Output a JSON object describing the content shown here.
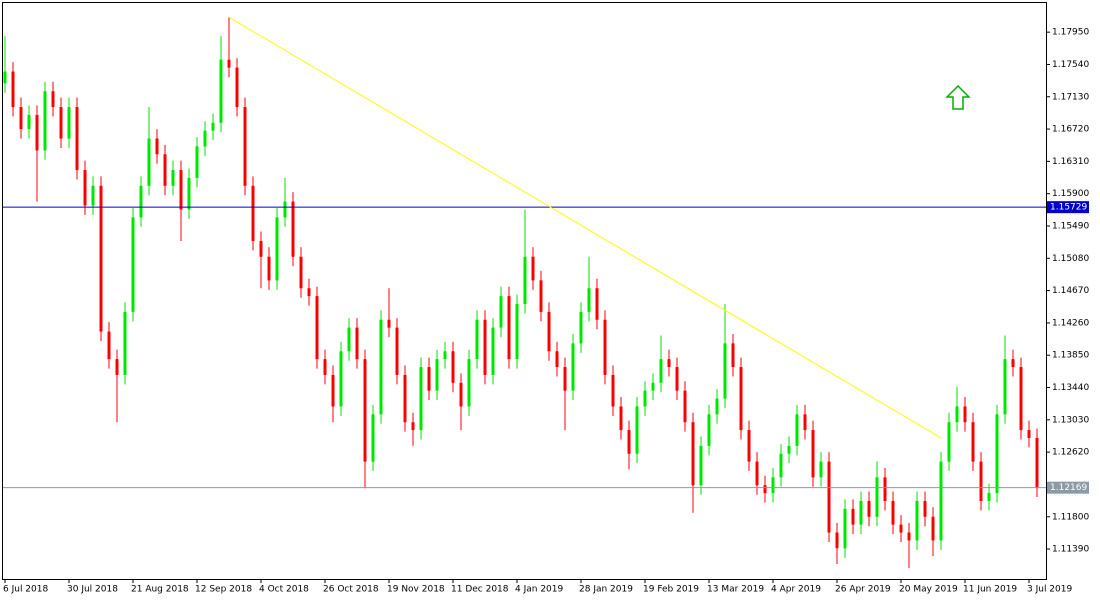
{
  "chart_data": {
    "type": "candlestick",
    "up_color": "#00e600",
    "down_color": "#ff0000",
    "categories": [
      "6 Jul 2018",
      null,
      null,
      null,
      null,
      null,
      null,
      null,
      "30 Jul 2018",
      null,
      null,
      null,
      null,
      null,
      null,
      null,
      "21 Aug 2018",
      null,
      null,
      null,
      null,
      null,
      null,
      null,
      "12 Sep 2018",
      null,
      null,
      null,
      null,
      null,
      null,
      null,
      "4 Oct 2018",
      null,
      null,
      null,
      null,
      null,
      null,
      null,
      "26 Oct 2018",
      null,
      null,
      null,
      null,
      null,
      null,
      null,
      "19 Nov 2018",
      null,
      null,
      null,
      null,
      null,
      null,
      null,
      "11 Dec 2018",
      null,
      null,
      null,
      null,
      null,
      null,
      null,
      "4 Jan 2019",
      null,
      null,
      null,
      null,
      null,
      null,
      null,
      "28 Jan 2019",
      null,
      null,
      null,
      null,
      null,
      null,
      null,
      "19 Feb 2019",
      null,
      null,
      null,
      null,
      null,
      null,
      null,
      "13 Mar 2019",
      null,
      null,
      null,
      null,
      null,
      null,
      null,
      "4 Apr 2019",
      null,
      null,
      null,
      null,
      null,
      null,
      null,
      "26 Apr 2019",
      null,
      null,
      null,
      null,
      null,
      null,
      null,
      "20 May 2019",
      null,
      null,
      null,
      null,
      null,
      null,
      null,
      "11 Jun 2019",
      null,
      null,
      null,
      null,
      null,
      null,
      null,
      "3 Jul 2019",
      null
    ],
    "open": [
      1.173,
      1.1745,
      1.17,
      1.1672,
      1.169,
      1.1645,
      1.172,
      1.17,
      1.166,
      1.17,
      1.162,
      1.1575,
      1.16,
      1.1415,
      1.138,
      1.136,
      1.144,
      1.156,
      1.16,
      1.166,
      1.164,
      1.16,
      1.162,
      1.157,
      1.161,
      1.165,
      1.167,
      1.168,
      1.176,
      1.175,
      1.17,
      1.16,
      1.153,
      1.151,
      1.148,
      1.156,
      1.158,
      1.151,
      1.147,
      1.146,
      1.138,
      1.136,
      1.132,
      1.139,
      1.142,
      1.138,
      1.125,
      1.131,
      1.143,
      1.142,
      1.136,
      1.13,
      1.129,
      1.137,
      1.134,
      1.138,
      1.139,
      1.135,
      1.132,
      1.138,
      1.143,
      1.136,
      1.142,
      1.146,
      1.138,
      1.145,
      1.151,
      1.148,
      1.144,
      1.139,
      1.137,
      1.134,
      1.14,
      1.144,
      1.147,
      1.143,
      1.136,
      1.132,
      1.129,
      1.126,
      1.132,
      1.134,
      1.135,
      1.138,
      1.137,
      1.134,
      1.13,
      1.122,
      1.127,
      1.131,
      1.133,
      1.14,
      1.137,
      1.129,
      1.125,
      1.122,
      1.121,
      1.123,
      1.126,
      1.127,
      1.131,
      1.129,
      1.123,
      1.125,
      1.116,
      1.114,
      1.119,
      1.117,
      1.12,
      1.118,
      1.123,
      1.12,
      1.117,
      1.116,
      1.115,
      1.12,
      1.118,
      1.115,
      1.125,
      1.13,
      1.132,
      1.13,
      1.125,
      1.12,
      1.121,
      1.131,
      1.138,
      1.137,
      1.129,
      1.128
    ],
    "high": [
      1.179,
      1.1757,
      1.1712,
      1.1702,
      1.1702,
      1.1732,
      1.1732,
      1.1712,
      1.1712,
      1.1712,
      1.1632,
      1.1612,
      1.1612,
      1.1427,
      1.1392,
      1.1452,
      1.1572,
      1.1612,
      1.17,
      1.1672,
      1.1652,
      1.1632,
      1.1632,
      1.1622,
      1.1662,
      1.1682,
      1.1692,
      1.179,
      1.1814,
      1.1762,
      1.1712,
      1.1612,
      1.1542,
      1.1522,
      1.1572,
      1.161,
      1.1592,
      1.1522,
      1.1482,
      1.1472,
      1.1392,
      1.1372,
      1.1402,
      1.1432,
      1.1432,
      1.1392,
      1.1322,
      1.1442,
      1.147,
      1.1432,
      1.1372,
      1.1312,
      1.1382,
      1.1382,
      1.1392,
      1.1402,
      1.1402,
      1.1362,
      1.1392,
      1.1442,
      1.1442,
      1.1432,
      1.1472,
      1.1472,
      1.1462,
      1.157,
      1.1522,
      1.1492,
      1.1452,
      1.1402,
      1.1382,
      1.1412,
      1.1452,
      1.151,
      1.1482,
      1.1442,
      1.1372,
      1.1332,
      1.1302,
      1.1332,
      1.1352,
      1.1362,
      1.141,
      1.1392,
      1.1382,
      1.1352,
      1.1312,
      1.1282,
      1.1322,
      1.1342,
      1.145,
      1.1412,
      1.1382,
      1.1302,
      1.1262,
      1.1232,
      1.1242,
      1.1272,
      1.1282,
      1.1322,
      1.1322,
      1.1302,
      1.1262,
      1.1262,
      1.1172,
      1.1202,
      1.1202,
      1.1212,
      1.1212,
      1.125,
      1.1242,
      1.1212,
      1.1182,
      1.1172,
      1.1212,
      1.1212,
      1.1192,
      1.1262,
      1.1312,
      1.1345,
      1.1332,
      1.1312,
      1.1262,
      1.1222,
      1.1322,
      1.141,
      1.1392,
      1.1382,
      1.1302,
      1.1292
    ],
    "low": [
      1.1718,
      1.1688,
      1.166,
      1.166,
      1.158,
      1.1633,
      1.1688,
      1.1648,
      1.1648,
      1.1608,
      1.1563,
      1.1563,
      1.1403,
      1.1368,
      1.13,
      1.1348,
      1.1428,
      1.1548,
      1.1588,
      1.1628,
      1.1588,
      1.1588,
      1.153,
      1.1558,
      1.1598,
      1.1638,
      1.1658,
      1.1668,
      1.1738,
      1.1688,
      1.1588,
      1.1518,
      1.147,
      1.1468,
      1.1468,
      1.1548,
      1.1498,
      1.1458,
      1.1448,
      1.1368,
      1.1348,
      1.13,
      1.1308,
      1.1378,
      1.1368,
      1.1216,
      1.1238,
      1.1298,
      1.1408,
      1.1348,
      1.1288,
      1.127,
      1.1278,
      1.1328,
      1.1328,
      1.1368,
      1.1338,
      1.129,
      1.1308,
      1.1368,
      1.1348,
      1.1348,
      1.1408,
      1.1368,
      1.1368,
      1.1438,
      1.1468,
      1.1428,
      1.1378,
      1.1358,
      1.129,
      1.1328,
      1.1388,
      1.1428,
      1.1418,
      1.1348,
      1.1308,
      1.1278,
      1.124,
      1.1248,
      1.1308,
      1.1328,
      1.1338,
      1.1358,
      1.1328,
      1.1288,
      1.1185,
      1.1208,
      1.1258,
      1.1298,
      1.1318,
      1.1358,
      1.1278,
      1.1238,
      1.1208,
      1.1198,
      1.1198,
      1.1218,
      1.1248,
      1.1258,
      1.1278,
      1.1218,
      1.1218,
      1.1148,
      1.112,
      1.1128,
      1.1158,
      1.1158,
      1.1168,
      1.1168,
      1.1188,
      1.1158,
      1.1148,
      1.1115,
      1.1138,
      1.1168,
      1.113,
      1.1138,
      1.1238,
      1.1288,
      1.1288,
      1.1238,
      1.1188,
      1.1188,
      1.1198,
      1.1298,
      1.1358,
      1.1278,
      1.1268,
      1.1205
    ],
    "close": [
      1.1745,
      1.17,
      1.1672,
      1.169,
      1.1645,
      1.172,
      1.17,
      1.166,
      1.17,
      1.162,
      1.1575,
      1.16,
      1.1415,
      1.138,
      1.136,
      1.144,
      1.156,
      1.16,
      1.166,
      1.164,
      1.16,
      1.162,
      1.157,
      1.161,
      1.165,
      1.167,
      1.168,
      1.176,
      1.175,
      1.17,
      1.16,
      1.153,
      1.151,
      1.148,
      1.156,
      1.158,
      1.151,
      1.147,
      1.146,
      1.138,
      1.136,
      1.132,
      1.139,
      1.142,
      1.138,
      1.125,
      1.131,
      1.143,
      1.142,
      1.136,
      1.13,
      1.129,
      1.137,
      1.134,
      1.138,
      1.139,
      1.135,
      1.132,
      1.138,
      1.143,
      1.136,
      1.142,
      1.146,
      1.138,
      1.145,
      1.151,
      1.148,
      1.144,
      1.139,
      1.137,
      1.134,
      1.14,
      1.144,
      1.147,
      1.143,
      1.136,
      1.132,
      1.129,
      1.126,
      1.132,
      1.134,
      1.135,
      1.138,
      1.137,
      1.134,
      1.13,
      1.122,
      1.127,
      1.131,
      1.133,
      1.14,
      1.137,
      1.129,
      1.125,
      1.122,
      1.121,
      1.123,
      1.126,
      1.127,
      1.131,
      1.129,
      1.123,
      1.125,
      1.116,
      1.114,
      1.119,
      1.117,
      1.12,
      1.118,
      1.123,
      1.12,
      1.117,
      1.116,
      1.115,
      1.12,
      1.118,
      1.115,
      1.125,
      1.13,
      1.132,
      1.13,
      1.125,
      1.12,
      1.121,
      1.131,
      1.138,
      1.137,
      1.129,
      1.128,
      1.1217
    ],
    "ylim": [
      1.1101,
      1.1832
    ],
    "yticks": [
      {
        "value": 1.1795,
        "label": "1.17950"
      },
      {
        "value": 1.1754,
        "label": "1.17540"
      },
      {
        "value": 1.1713,
        "label": "1.17130"
      },
      {
        "value": 1.1672,
        "label": "1.16720"
      },
      {
        "value": 1.1631,
        "label": "1.16310"
      },
      {
        "value": 1.159,
        "label": "1.15900"
      },
      {
        "value": 1.1549,
        "label": "1.15490"
      },
      {
        "value": 1.1508,
        "label": "1.15080"
      },
      {
        "value": 1.1467,
        "label": "1.14670"
      },
      {
        "value": 1.1426,
        "label": "1.14260"
      },
      {
        "value": 1.1385,
        "label": "1.13850"
      },
      {
        "value": 1.1344,
        "label": "1.13440"
      },
      {
        "value": 1.1303,
        "label": "1.13030"
      },
      {
        "value": 1.1262,
        "label": "1.12620"
      },
      {
        "value": 1.118,
        "label": "1.11800"
      },
      {
        "value": 1.1139,
        "label": "1.11390"
      }
    ],
    "hlines": [
      {
        "value": 1.15729,
        "color": "#0000c8"
      },
      {
        "value": 1.12169,
        "color": "#8c9aa6"
      }
    ],
    "trendline": {
      "x": [
        28,
        117
      ],
      "y": [
        1.1814,
        1.128
      ],
      "color": "#ffff00"
    }
  }
}
